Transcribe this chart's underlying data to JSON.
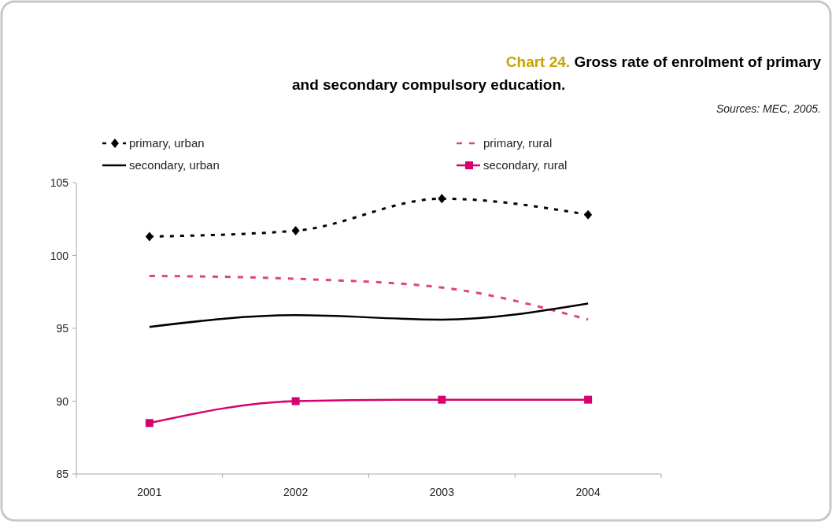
{
  "chart_data": {
    "type": "line",
    "title": "Chart 24. Gross rate of enrolment of primary and secondary compulsory education.",
    "annotations": [
      "Sources: MEC, 2005."
    ],
    "categories": [
      "2001",
      "2002",
      "2003",
      "2004"
    ],
    "series": [
      {
        "name": "primary, urban",
        "color": "#000000",
        "values": [
          101.3,
          101.7,
          103.9,
          102.8
        ],
        "line_style": "dotted",
        "marker": "diamond"
      },
      {
        "name": "primary, rural",
        "color": "#e0457a",
        "values": [
          98.6,
          98.4,
          97.8,
          95.6
        ],
        "line_style": "dashed",
        "marker": "none"
      },
      {
        "name": "secondary, urban",
        "color": "#000000",
        "values": [
          95.1,
          95.9,
          95.6,
          96.7
        ],
        "line_style": "solid",
        "marker": "none"
      },
      {
        "name": "secondary, rural",
        "color": "#d6006e",
        "values": [
          88.5,
          90.0,
          90.1,
          90.1
        ],
        "line_style": "solid",
        "marker": "square"
      }
    ],
    "ylim": [
      85,
      105
    ],
    "yticks": [
      85,
      90,
      95,
      100,
      105
    ],
    "grid": false,
    "legend": "top left"
  }
}
